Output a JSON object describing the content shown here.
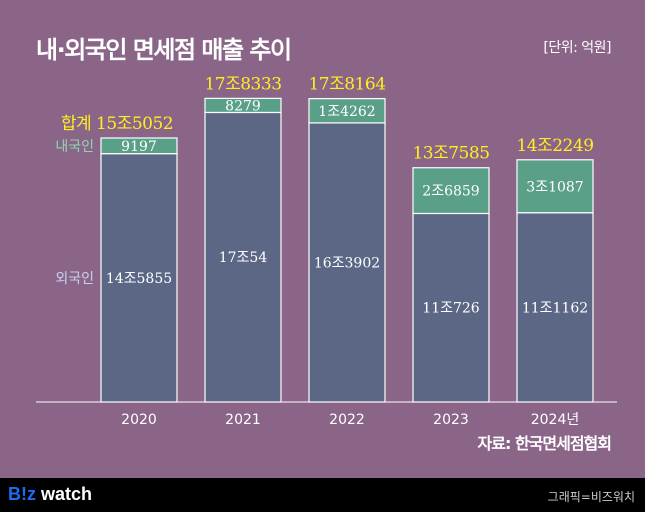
{
  "title": "내·외국인 면세점 매출 추이",
  "unit": "[단위: 억원]",
  "source": "자료: 한국면세점협회",
  "credit": "그래픽=비즈워치",
  "logo": "Biz watch",
  "colors": {
    "background": "#8a6588",
    "foreign": "#5b6785",
    "domestic": "#5aa088",
    "total_label": "#ffee22"
  },
  "chart_data": {
    "type": "bar",
    "stacked": true,
    "title": "내·외국인 면세점 매출 추이",
    "categories": [
      "2020",
      "2021",
      "2022",
      "2023",
      "2024년"
    ],
    "series": [
      {
        "name": "외국인",
        "values": [
          145855,
          170054,
          163902,
          110726,
          111162
        ],
        "labels": [
          "14조5855",
          "17조54",
          "16조3902",
          "11조726",
          "11조1162"
        ]
      },
      {
        "name": "내국인",
        "values": [
          9197,
          8279,
          14262,
          26859,
          31087
        ],
        "labels": [
          "9197",
          "8279",
          "1조4262",
          "2조6859",
          "3조1087"
        ]
      }
    ],
    "totals": [
      155052,
      178333,
      178164,
      137585,
      142249
    ],
    "total_labels": [
      "15조5052",
      "17조8333",
      "17조8164",
      "13조7585",
      "14조2249"
    ],
    "total_prefix": "합계",
    "ylabel": "억원",
    "ylim": [
      0,
      180000
    ]
  }
}
